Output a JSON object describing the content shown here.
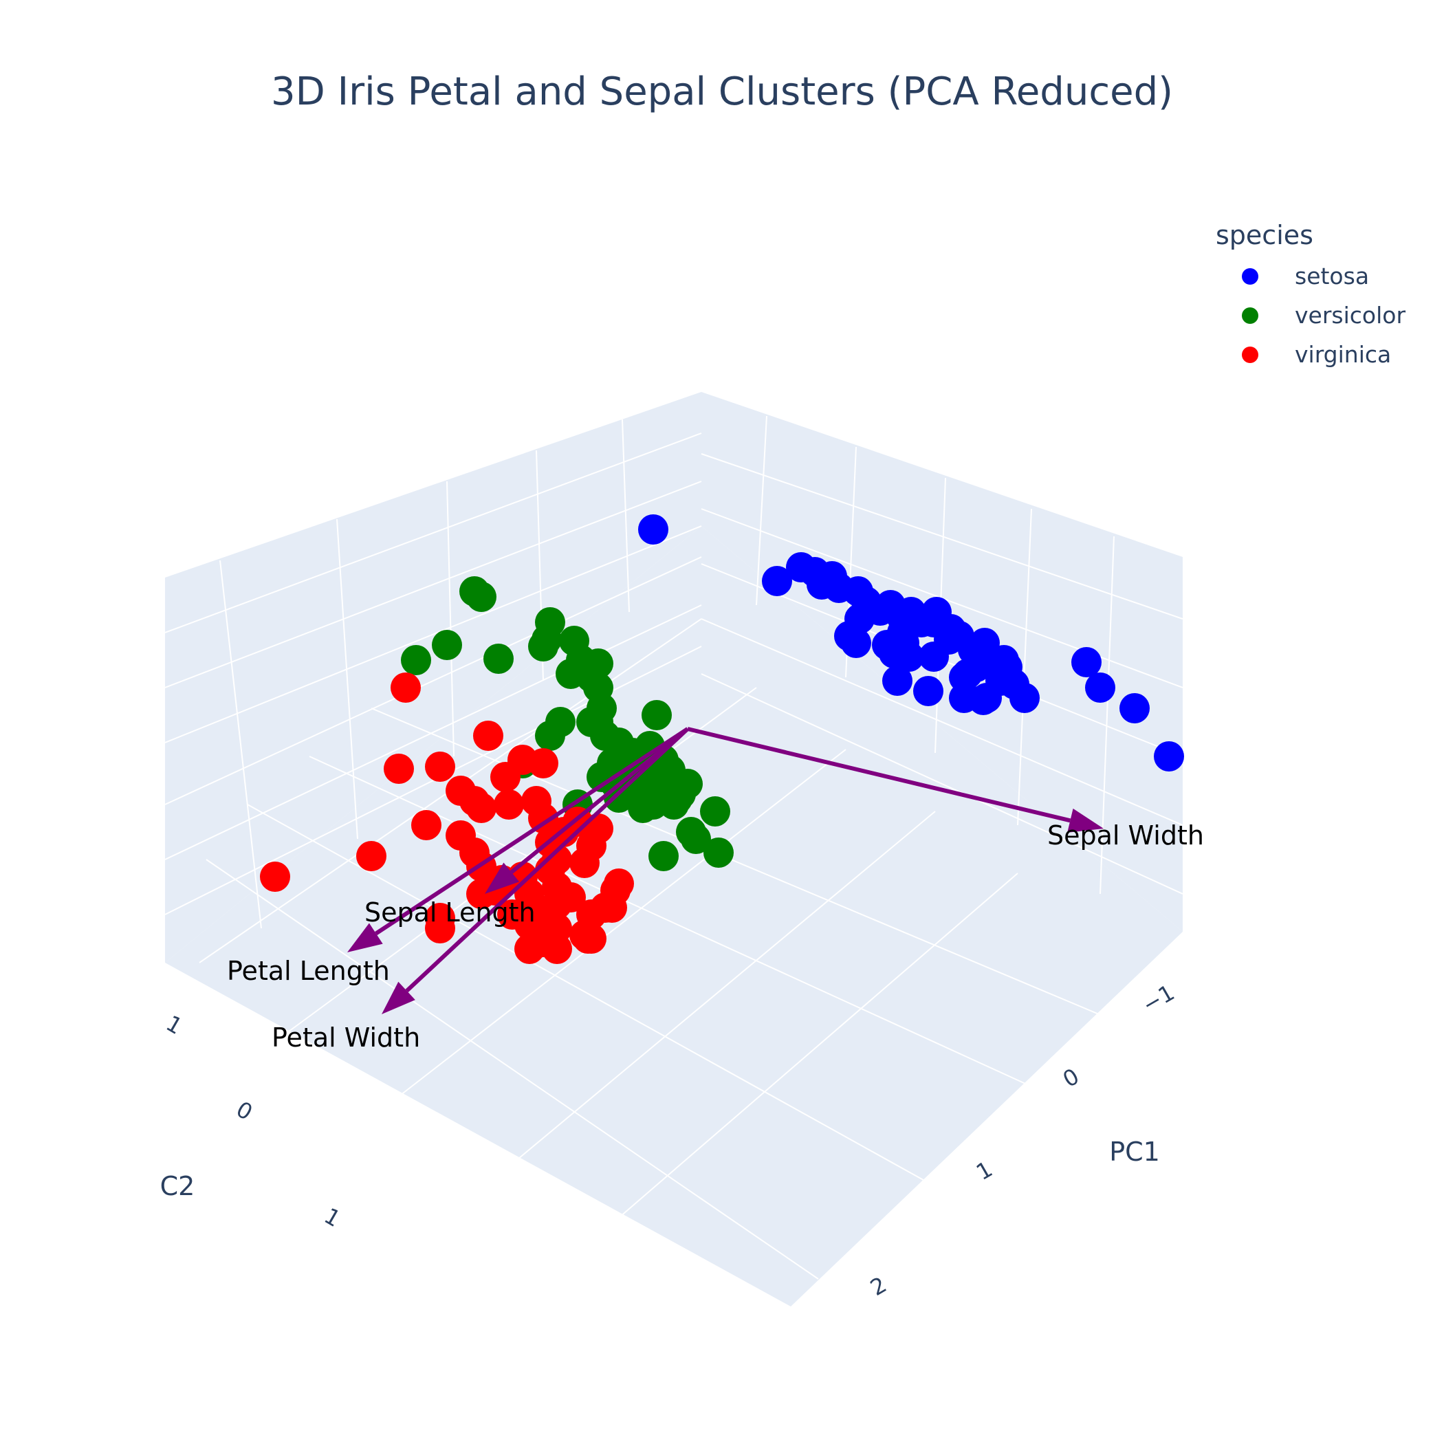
{
  "colors": {
    "setosa": "#0000ff",
    "versicolor": "#008000",
    "virginica": "#ff0000",
    "loading": "#800080",
    "scene_bg": "#e5ecf6",
    "grid": "#ffffff",
    "text": "#2a3f5f"
  },
  "chart_data": {
    "type": "scatter3d",
    "title": "3D Iris Petal and Sepal Clusters (PCA Reduced)",
    "axes": {
      "x": {
        "label": "PC1",
        "ticks": [
          "−1",
          "0",
          "1",
          "2"
        ]
      },
      "y": {
        "label": "C2",
        "ticks": [
          "1",
          "0",
          "1"
        ]
      }
    },
    "grid": true,
    "legend": {
      "title": "species",
      "position": "top-right",
      "entries": [
        "setosa",
        "versicolor",
        "virginica"
      ]
    },
    "series": [
      {
        "name": "setosa",
        "points": [
          [
            950,
            770
          ],
          [
            1130,
            845
          ],
          [
            1165,
            825
          ],
          [
            1185,
            832
          ],
          [
            1195,
            850
          ],
          [
            1210,
            838
          ],
          [
            1220,
            855
          ],
          [
            1248,
            860
          ],
          [
            1260,
            875
          ],
          [
            1280,
            888
          ],
          [
            1295,
            880
          ],
          [
            1310,
            895
          ],
          [
            1325,
            890
          ],
          [
            1340,
            905
          ],
          [
            1362,
            890
          ],
          [
            1380,
            930
          ],
          [
            1395,
            925
          ],
          [
            1415,
            945
          ],
          [
            1432,
            935
          ],
          [
            1460,
            960
          ],
          [
            1475,
            995
          ],
          [
            1455,
            990
          ],
          [
            1465,
            970
          ],
          [
            1402,
            985
          ],
          [
            1315,
            915
          ],
          [
            1245,
            935
          ],
          [
            1290,
            938
          ],
          [
            1310,
            930
          ],
          [
            1358,
            905
          ],
          [
            1383,
            915
          ],
          [
            1420,
            970
          ],
          [
            1358,
            955
          ],
          [
            1322,
            955
          ],
          [
            1305,
            990
          ],
          [
            1300,
            950
          ],
          [
            1312,
            920
          ],
          [
            1315,
            935
          ],
          [
            1350,
            1005
          ],
          [
            1402,
            1015
          ],
          [
            1435,
            1015
          ],
          [
            1407,
            980
          ],
          [
            1490,
            1015
          ],
          [
            1580,
            963
          ],
          [
            1600,
            1000
          ],
          [
            1650,
            1030
          ],
          [
            1700,
            1100
          ],
          [
            1440,
            960
          ],
          [
            1250,
            900
          ],
          [
            1235,
            925
          ],
          [
            1430,
            1018
          ]
        ]
      },
      {
        "name": "versicolor",
        "points": [
          [
            690,
            860
          ],
          [
            700,
            868
          ],
          [
            650,
            938
          ],
          [
            605,
            960
          ],
          [
            725,
            958
          ],
          [
            800,
            905
          ],
          [
            795,
            930
          ],
          [
            790,
            940
          ],
          [
            835,
            932
          ],
          [
            845,
            960
          ],
          [
            830,
            980
          ],
          [
            870,
            965
          ],
          [
            870,
            1000
          ],
          [
            860,
            985
          ],
          [
            875,
            1030
          ],
          [
            870,
            1050
          ],
          [
            880,
            1070
          ],
          [
            900,
            1080
          ],
          [
            910,
            1100
          ],
          [
            905,
            1120
          ],
          [
            890,
            1110
          ],
          [
            875,
            1130
          ],
          [
            895,
            1140
          ],
          [
            935,
            1130
          ],
          [
            955,
            1110
          ],
          [
            965,
            1105
          ],
          [
            975,
            1120
          ],
          [
            970,
            1140
          ],
          [
            960,
            1150
          ],
          [
            950,
            1170
          ],
          [
            935,
            1175
          ],
          [
            900,
            1160
          ],
          [
            925,
            1150
          ],
          [
            980,
            1170
          ],
          [
            990,
            1155
          ],
          [
            1000,
            1140
          ],
          [
            965,
            1130
          ],
          [
            945,
            1085
          ],
          [
            920,
            1095
          ],
          [
            860,
            1050
          ],
          [
            815,
            1050
          ],
          [
            800,
            1070
          ],
          [
            760,
            1110
          ],
          [
            840,
            1170
          ],
          [
            960,
            1125
          ],
          [
            985,
            1162
          ],
          [
            950,
            1148
          ],
          [
            1005,
            1210
          ],
          [
            1040,
            1180
          ],
          [
            955,
            1040
          ],
          [
            1012,
            1220
          ],
          [
            965,
            1245
          ],
          [
            1045,
            1240
          ]
        ]
      },
      {
        "name": "virginica",
        "points": [
          [
            590,
            1000
          ],
          [
            710,
            1070
          ],
          [
            640,
            1115
          ],
          [
            580,
            1118
          ],
          [
            670,
            1150
          ],
          [
            735,
            1130
          ],
          [
            760,
            1105
          ],
          [
            790,
            1110
          ],
          [
            740,
            1170
          ],
          [
            690,
            1165
          ],
          [
            700,
            1175
          ],
          [
            780,
            1165
          ],
          [
            790,
            1190
          ],
          [
            840,
            1195
          ],
          [
            870,
            1205
          ],
          [
            820,
            1210
          ],
          [
            800,
            1225
          ],
          [
            860,
            1230
          ],
          [
            850,
            1255
          ],
          [
            810,
            1250
          ],
          [
            800,
            1265
          ],
          [
            760,
            1275
          ],
          [
            730,
            1280
          ],
          [
            720,
            1295
          ],
          [
            700,
            1300
          ],
          [
            620,
            1200
          ],
          [
            670,
            1215
          ],
          [
            690,
            1240
          ],
          [
            700,
            1260
          ],
          [
            540,
            1245
          ],
          [
            400,
            1275
          ],
          [
            640,
            1335
          ],
          [
            640,
            1350
          ],
          [
            770,
            1320
          ],
          [
            770,
            1300
          ],
          [
            800,
            1330
          ],
          [
            830,
            1305
          ],
          [
            900,
            1285
          ],
          [
            880,
            1320
          ],
          [
            860,
            1330
          ],
          [
            810,
            1350
          ],
          [
            790,
            1370
          ],
          [
            770,
            1380
          ],
          [
            855,
            1365
          ],
          [
            895,
            1295
          ],
          [
            810,
            1290
          ],
          [
            860,
            1365
          ],
          [
            805,
            1345
          ],
          [
            810,
            1380
          ],
          [
            890,
            1320
          ],
          [
            850,
            1360
          ],
          [
            775,
            1375
          ],
          [
            810,
            1315
          ],
          [
            770,
            1345
          ],
          [
            745,
            1330
          ]
        ]
      }
    ],
    "loadings": [
      {
        "label": "Sepal Width",
        "from": [
          1000,
          1060
        ],
        "to": [
          1605,
          1205
        ]
      },
      {
        "label": "Petal Length",
        "from": [
          1000,
          1060
        ],
        "to": [
          505,
          1385
        ]
      },
      {
        "label": "Sepal Length",
        "from": [
          1000,
          1060
        ],
        "to": [
          705,
          1300
        ]
      },
      {
        "label": "Petal Width",
        "from": [
          1000,
          1060
        ],
        "to": [
          555,
          1475
        ]
      }
    ]
  }
}
